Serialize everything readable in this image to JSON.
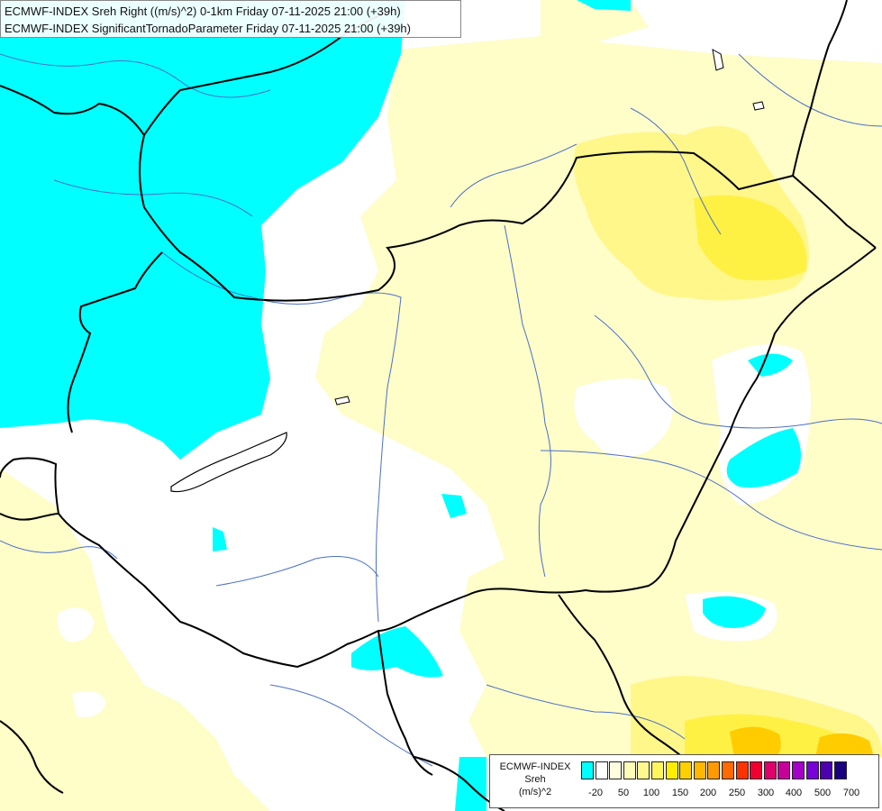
{
  "header": {
    "line1": "ECMWF-INDEX Sreh Right ((m/s)^2) 0-1km Friday 07-11-2025 21:00 (+39h)",
    "line2": "ECMWF-INDEX SignificantTornadoParameter Friday 07-11-2025 21:00 (+39h)"
  },
  "legend": {
    "title1": "ECMWF-INDEX",
    "title2": "Sreh",
    "title3": "(m/s)^2",
    "colors": [
      "#00ffff",
      "#ffffff",
      "#fffde0",
      "#fffbb8",
      "#fff88e",
      "#fff55c",
      "#ffee00",
      "#ffd000",
      "#ffb800",
      "#ff9a00",
      "#ff6a00",
      "#ff3300",
      "#f00030",
      "#e0006a",
      "#c8009a",
      "#a400c8",
      "#7800d8",
      "#4c00b0",
      "#1a0080"
    ],
    "ticks": [
      "-20",
      "50",
      "100",
      "150",
      "200",
      "250",
      "300",
      "400",
      "500",
      "700"
    ]
  },
  "palette": {
    "cyan": "#00ffff",
    "pale_yellow": "#fffdc8",
    "light_yellow": "#fff78a",
    "yellow": "#fff044",
    "orange": "#ffcc00",
    "border": "#000000",
    "river": "#4a6fc8"
  }
}
